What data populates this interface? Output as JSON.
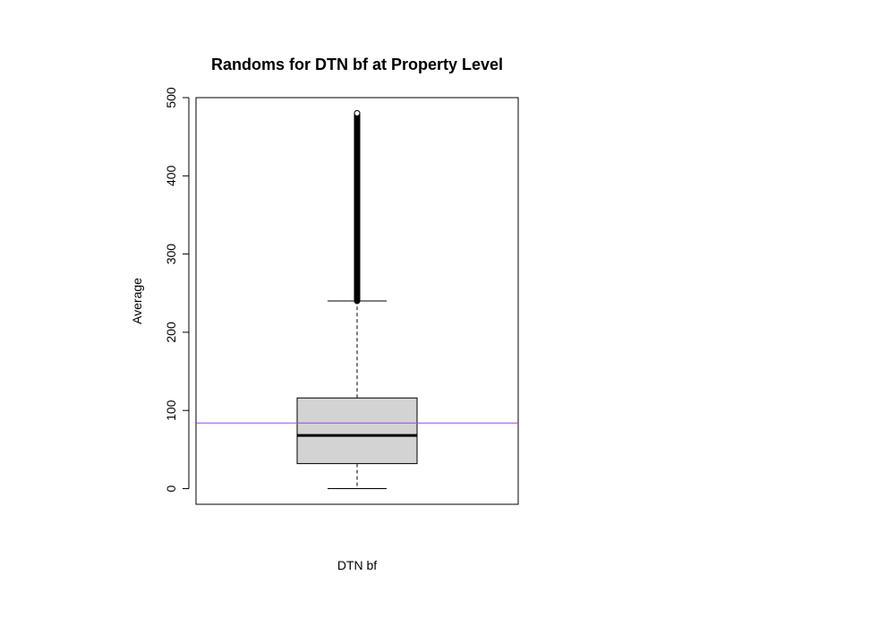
{
  "chart_data": {
    "type": "boxplot",
    "title": "Randoms for DTN bf at Property Level",
    "xlabel": "DTN bf",
    "ylabel": "Average",
    "ylim": [
      -20,
      500
    ],
    "yticks": [
      0,
      100,
      200,
      300,
      400,
      500
    ],
    "ytick_labels": [
      "0",
      "100",
      "200",
      "300",
      "400",
      "500"
    ],
    "grid": false,
    "series": [
      {
        "category": "DTN bf",
        "min": 0,
        "q1": 32,
        "median": 68,
        "q3": 116,
        "whisker_high": 240,
        "outlier_range": [
          240,
          480
        ],
        "box_color": "#d3d3d3"
      }
    ],
    "reference_line": {
      "y": 84,
      "color": "#a040ff"
    }
  }
}
